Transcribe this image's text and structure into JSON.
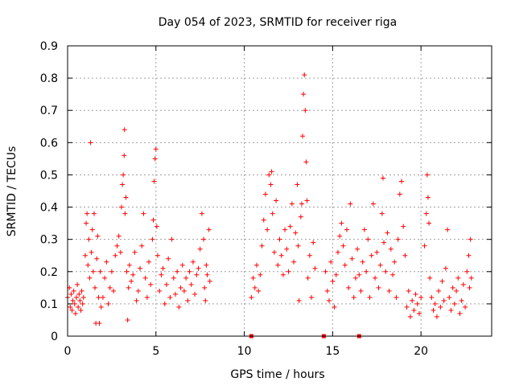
{
  "chart_data": {
    "type": "scatter",
    "title": "Day 054 of 2023, SRMTID for receiver riga",
    "xlabel": "GPS time / hours",
    "ylabel": "SRMTID / TECUs",
    "xlim": [
      0,
      24
    ],
    "ylim": [
      0,
      0.9
    ],
    "xticks": [
      0,
      5,
      10,
      15,
      20
    ],
    "xtick_labels": [
      "0",
      "5",
      "10",
      "15",
      "20"
    ],
    "yticks": [
      0,
      0.1,
      0.2,
      0.3,
      0.4,
      0.5,
      0.6,
      0.7,
      0.8,
      0.9
    ],
    "ytick_labels": [
      "0",
      "0.1",
      "0.2",
      "0.3",
      "0.4",
      "0.5",
      "0.6",
      "0.7",
      "0.8",
      "0.9"
    ],
    "grid": true,
    "marker": "+",
    "color": "#ff0000",
    "series": [
      {
        "name": "SRMTID",
        "points": [
          [
            0.0,
            0.12
          ],
          [
            0.1,
            0.15
          ],
          [
            0.15,
            0.09
          ],
          [
            0.2,
            0.13
          ],
          [
            0.25,
            0.08
          ],
          [
            0.3,
            0.11
          ],
          [
            0.35,
            0.14
          ],
          [
            0.4,
            0.1
          ],
          [
            0.45,
            0.07
          ],
          [
            0.5,
            0.12
          ],
          [
            0.55,
            0.16
          ],
          [
            0.6,
            0.09
          ],
          [
            0.65,
            0.13
          ],
          [
            0.7,
            0.11
          ],
          [
            0.75,
            0.08
          ],
          [
            0.8,
            0.14
          ],
          [
            0.85,
            0.1
          ],
          [
            0.9,
            0.12
          ],
          [
            1.0,
            0.25
          ],
          [
            1.05,
            0.35
          ],
          [
            1.1,
            0.38
          ],
          [
            1.15,
            0.22
          ],
          [
            1.2,
            0.3
          ],
          [
            1.25,
            0.18
          ],
          [
            1.3,
            0.6
          ],
          [
            1.35,
            0.26
          ],
          [
            1.4,
            0.33
          ],
          [
            1.45,
            0.2
          ],
          [
            1.5,
            0.38
          ],
          [
            1.55,
            0.15
          ],
          [
            1.6,
            0.04
          ],
          [
            1.65,
            0.24
          ],
          [
            1.7,
            0.31
          ],
          [
            1.75,
            0.12
          ],
          [
            1.8,
            0.04
          ],
          [
            1.85,
            0.2
          ],
          [
            1.9,
            0.09
          ],
          [
            2.0,
            0.12
          ],
          [
            2.1,
            0.18
          ],
          [
            2.2,
            0.23
          ],
          [
            2.3,
            0.1
          ],
          [
            2.4,
            0.15
          ],
          [
            2.5,
            0.2
          ],
          [
            2.6,
            0.14
          ],
          [
            2.7,
            0.25
          ],
          [
            2.8,
            0.28
          ],
          [
            2.9,
            0.31
          ],
          [
            3.0,
            0.26
          ],
          [
            3.05,
            0.4
          ],
          [
            3.1,
            0.47
          ],
          [
            3.15,
            0.5
          ],
          [
            3.2,
            0.56
          ],
          [
            3.22,
            0.64
          ],
          [
            3.25,
            0.38
          ],
          [
            3.3,
            0.43
          ],
          [
            3.35,
            0.2
          ],
          [
            3.4,
            0.05
          ],
          [
            3.45,
            0.15
          ],
          [
            3.5,
            0.22
          ],
          [
            3.6,
            0.17
          ],
          [
            3.7,
            0.19
          ],
          [
            3.8,
            0.26
          ],
          [
            3.9,
            0.11
          ],
          [
            4.0,
            0.14
          ],
          [
            4.1,
            0.21
          ],
          [
            4.2,
            0.28
          ],
          [
            4.3,
            0.38
          ],
          [
            4.4,
            0.18
          ],
          [
            4.5,
            0.12
          ],
          [
            4.6,
            0.23
          ],
          [
            4.7,
            0.16
          ],
          [
            4.8,
            0.3
          ],
          [
            4.85,
            0.36
          ],
          [
            4.9,
            0.48
          ],
          [
            4.95,
            0.55
          ],
          [
            5.0,
            0.58
          ],
          [
            5.05,
            0.34
          ],
          [
            5.1,
            0.25
          ],
          [
            5.2,
            0.14
          ],
          [
            5.3,
            0.19
          ],
          [
            5.4,
            0.21
          ],
          [
            5.5,
            0.1
          ],
          [
            5.6,
            0.16
          ],
          [
            5.7,
            0.24
          ],
          [
            5.8,
            0.12
          ],
          [
            5.9,
            0.3
          ],
          [
            6.0,
            0.18
          ],
          [
            6.1,
            0.13
          ],
          [
            6.2,
            0.2
          ],
          [
            6.3,
            0.09
          ],
          [
            6.4,
            0.15
          ],
          [
            6.5,
            0.22
          ],
          [
            6.6,
            0.14
          ],
          [
            6.7,
            0.18
          ],
          [
            6.8,
            0.11
          ],
          [
            6.9,
            0.2
          ],
          [
            7.0,
            0.16
          ],
          [
            7.1,
            0.23
          ],
          [
            7.2,
            0.13
          ],
          [
            7.3,
            0.19
          ],
          [
            7.4,
            0.21
          ],
          [
            7.5,
            0.27
          ],
          [
            7.6,
            0.38
          ],
          [
            7.7,
            0.3
          ],
          [
            7.75,
            0.15
          ],
          [
            7.8,
            0.11
          ],
          [
            7.85,
            0.22
          ],
          [
            7.9,
            0.19
          ],
          [
            8.0,
            0.33
          ],
          [
            8.05,
            0.17
          ],
          [
            10.4,
            0.12
          ],
          [
            10.5,
            0.18
          ],
          [
            10.6,
            0.15
          ],
          [
            10.7,
            0.22
          ],
          [
            10.8,
            0.14
          ],
          [
            10.9,
            0.19
          ],
          [
            11.0,
            0.28
          ],
          [
            11.1,
            0.36
          ],
          [
            11.2,
            0.44
          ],
          [
            11.3,
            0.33
          ],
          [
            11.4,
            0.5
          ],
          [
            11.5,
            0.47
          ],
          [
            11.55,
            0.51
          ],
          [
            11.6,
            0.38
          ],
          [
            11.7,
            0.26
          ],
          [
            11.8,
            0.42
          ],
          [
            11.9,
            0.22
          ],
          [
            12.0,
            0.3
          ],
          [
            12.1,
            0.25
          ],
          [
            12.2,
            0.19
          ],
          [
            12.3,
            0.33
          ],
          [
            12.4,
            0.27
          ],
          [
            12.5,
            0.2
          ],
          [
            12.6,
            0.34
          ],
          [
            12.7,
            0.41
          ],
          [
            12.8,
            0.23
          ],
          [
            12.9,
            0.32
          ],
          [
            13.0,
            0.47
          ],
          [
            13.05,
            0.28
          ],
          [
            13.1,
            0.11
          ],
          [
            13.2,
            0.37
          ],
          [
            13.25,
            0.41
          ],
          [
            13.3,
            0.62
          ],
          [
            13.35,
            0.75
          ],
          [
            13.4,
            0.81
          ],
          [
            13.45,
            0.7
          ],
          [
            13.5,
            0.54
          ],
          [
            13.55,
            0.42
          ],
          [
            13.6,
            0.18
          ],
          [
            13.7,
            0.25
          ],
          [
            13.8,
            0.12
          ],
          [
            13.9,
            0.29
          ],
          [
            14.0,
            0.21
          ],
          [
            14.6,
            0.2
          ],
          [
            14.7,
            0.14
          ],
          [
            14.8,
            0.11
          ],
          [
            14.9,
            0.23
          ],
          [
            15.0,
            0.17
          ],
          [
            15.1,
            0.09
          ],
          [
            15.2,
            0.19
          ],
          [
            15.3,
            0.26
          ],
          [
            15.4,
            0.31
          ],
          [
            15.5,
            0.35
          ],
          [
            15.6,
            0.28
          ],
          [
            15.7,
            0.22
          ],
          [
            15.8,
            0.33
          ],
          [
            15.9,
            0.15
          ],
          [
            16.0,
            0.41
          ],
          [
            16.1,
            0.24
          ],
          [
            16.2,
            0.12
          ],
          [
            16.3,
            0.18
          ],
          [
            16.4,
            0.27
          ],
          [
            16.5,
            0.19
          ],
          [
            16.6,
            0.14
          ],
          [
            16.7,
            0.23
          ],
          [
            16.8,
            0.33
          ],
          [
            16.9,
            0.2
          ],
          [
            17.0,
            0.3
          ],
          [
            17.1,
            0.12
          ],
          [
            17.2,
            0.25
          ],
          [
            17.3,
            0.41
          ],
          [
            17.4,
            0.18
          ],
          [
            17.5,
            0.26
          ],
          [
            17.6,
            0.15
          ],
          [
            17.7,
            0.22
          ],
          [
            17.8,
            0.38
          ],
          [
            17.85,
            0.49
          ],
          [
            17.9,
            0.29
          ],
          [
            18.0,
            0.2
          ],
          [
            18.1,
            0.32
          ],
          [
            18.2,
            0.14
          ],
          [
            18.3,
            0.27
          ],
          [
            18.4,
            0.19
          ],
          [
            18.5,
            0.23
          ],
          [
            18.6,
            0.12
          ],
          [
            18.7,
            0.3
          ],
          [
            18.8,
            0.44
          ],
          [
            18.9,
            0.48
          ],
          [
            19.0,
            0.34
          ],
          [
            19.1,
            0.25
          ],
          [
            19.2,
            0.09
          ],
          [
            19.3,
            0.14
          ],
          [
            19.4,
            0.06
          ],
          [
            19.5,
            0.11
          ],
          [
            19.6,
            0.08
          ],
          [
            19.7,
            0.13
          ],
          [
            19.8,
            0.1
          ],
          [
            19.9,
            0.07
          ],
          [
            20.0,
            0.12
          ],
          [
            20.2,
            0.28
          ],
          [
            20.3,
            0.38
          ],
          [
            20.35,
            0.5
          ],
          [
            20.4,
            0.43
          ],
          [
            20.45,
            0.35
          ],
          [
            20.5,
            0.18
          ],
          [
            20.6,
            0.12
          ],
          [
            20.7,
            0.08
          ],
          [
            20.8,
            0.1
          ],
          [
            20.9,
            0.06
          ],
          [
            21.0,
            0.14
          ],
          [
            21.1,
            0.09
          ],
          [
            21.2,
            0.17
          ],
          [
            21.3,
            0.11
          ],
          [
            21.4,
            0.21
          ],
          [
            21.5,
            0.33
          ],
          [
            21.6,
            0.12
          ],
          [
            21.7,
            0.08
          ],
          [
            21.8,
            0.15
          ],
          [
            21.9,
            0.1
          ],
          [
            22.0,
            0.14
          ],
          [
            22.1,
            0.18
          ],
          [
            22.2,
            0.07
          ],
          [
            22.3,
            0.11
          ],
          [
            22.4,
            0.16
          ],
          [
            22.5,
            0.09
          ],
          [
            22.6,
            0.2
          ],
          [
            22.7,
            0.25
          ],
          [
            22.75,
            0.15
          ],
          [
            22.8,
            0.3
          ],
          [
            22.85,
            0.18
          ]
        ]
      }
    ],
    "gap_markers_x": [
      10.4,
      14.5,
      16.5
    ]
  }
}
